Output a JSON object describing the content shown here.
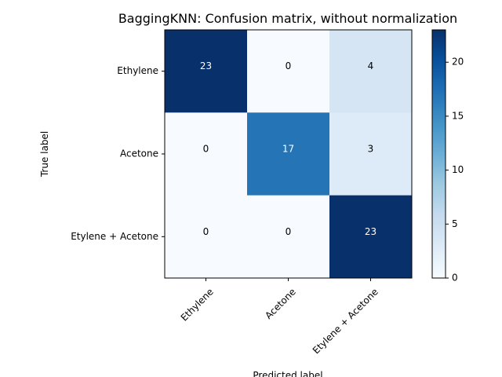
{
  "chart_data": {
    "type": "heatmap",
    "title": "BaggingKNN: Confusion matrix, without normalization",
    "xlabel": "Predicted label",
    "ylabel": "True label",
    "row_labels": [
      "Ethylene",
      "Acetone",
      "Etylene + Acetone"
    ],
    "col_labels": [
      "Ethylene",
      "Acetone",
      "Etylene + Acetone"
    ],
    "matrix": [
      [
        23,
        0,
        4
      ],
      [
        0,
        17,
        3
      ],
      [
        0,
        0,
        23
      ]
    ],
    "colormap": "Blues",
    "colorbar": {
      "min": 0,
      "max": 23,
      "ticks": [
        0,
        5,
        10,
        15,
        20
      ]
    },
    "grid": false
  }
}
